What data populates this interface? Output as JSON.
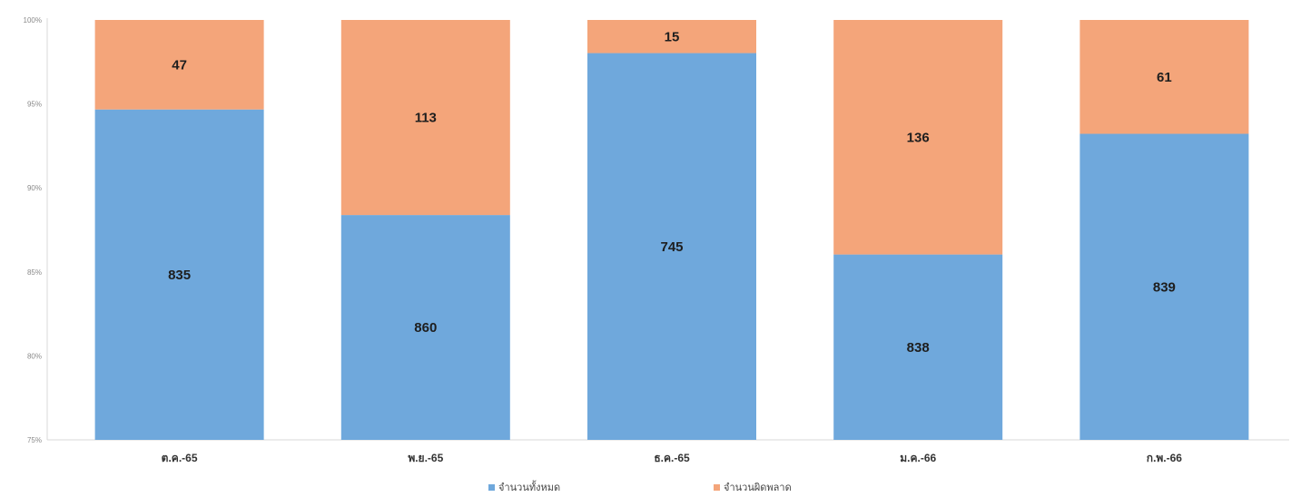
{
  "chart_data": {
    "type": "stacked-bar-100",
    "title": "",
    "xlabel": "",
    "ylabel": "",
    "categories": [
      "ต.ค.-65",
      "พ.ย.-65",
      "ธ.ค.-65",
      "ม.ค.-66",
      "ก.พ.-66"
    ],
    "y_ticks": [
      "75%",
      "80%",
      "85%",
      "90%",
      "95%",
      "100%"
    ],
    "ylim": [
      75,
      100
    ],
    "grid": false,
    "legend_position": "bottom",
    "series": [
      {
        "name": "จำนวนทั้งหมด",
        "color": "#6fa8dc",
        "values": [
          835,
          860,
          745,
          838,
          839
        ]
      },
      {
        "name": "จำนวนผิดพลาด",
        "color": "#f4a57a",
        "values": [
          47,
          113,
          15,
          136,
          61
        ]
      }
    ]
  }
}
